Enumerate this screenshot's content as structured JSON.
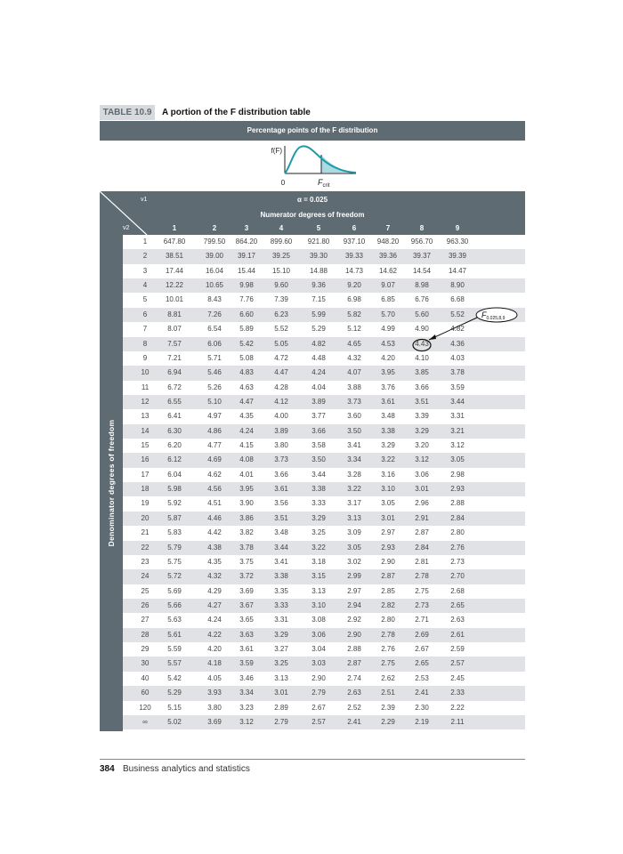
{
  "table": {
    "label": "TABLE 10.9",
    "title": "A portion of the F distribution table",
    "banner": "Percentage points of the F distribution",
    "graph": {
      "y_label": "f(F)",
      "origin_label": "0",
      "crit_label": "F",
      "crit_sub": "crit",
      "curve_color": "#1f9aa8",
      "tail_color": "#a9dbe3"
    },
    "nu1": "ν1",
    "nu2": "ν2",
    "alpha": "α = 0.025",
    "numerator_label": "Numerator degrees of freedom",
    "denominator_label": "Denominator degrees of freedom",
    "columns": [
      "1",
      "2",
      "3",
      "4",
      "5",
      "6",
      "7",
      "8",
      "9"
    ],
    "rows": [
      {
        "df": "1",
        "v": [
          "647.80",
          "799.50",
          "864.20",
          "899.60",
          "921.80",
          "937.10",
          "948.20",
          "956.70",
          "963.30"
        ]
      },
      {
        "df": "2",
        "v": [
          "38.51",
          "39.00",
          "39.17",
          "39.25",
          "39.30",
          "39.33",
          "39.36",
          "39.37",
          "39.39"
        ]
      },
      {
        "df": "3",
        "v": [
          "17.44",
          "16.04",
          "15.44",
          "15.10",
          "14.88",
          "14.73",
          "14.62",
          "14.54",
          "14.47"
        ]
      },
      {
        "df": "4",
        "v": [
          "12.22",
          "10.65",
          "9.98",
          "9.60",
          "9.36",
          "9.20",
          "9.07",
          "8.98",
          "8.90"
        ]
      },
      {
        "df": "5",
        "v": [
          "10.01",
          "8.43",
          "7.76",
          "7.39",
          "7.15",
          "6.98",
          "6.85",
          "6.76",
          "6.68"
        ]
      },
      {
        "df": "6",
        "v": [
          "8.81",
          "7.26",
          "6.60",
          "6.23",
          "5.99",
          "5.82",
          "5.70",
          "5.60",
          "5.52"
        ]
      },
      {
        "df": "7",
        "v": [
          "8.07",
          "6.54",
          "5.89",
          "5.52",
          "5.29",
          "5.12",
          "4.99",
          "4.90",
          "4.82"
        ]
      },
      {
        "df": "8",
        "v": [
          "7.57",
          "6.06",
          "5.42",
          "5.05",
          "4.82",
          "4.65",
          "4.53",
          "4.43",
          "4.36"
        ]
      },
      {
        "df": "9",
        "v": [
          "7.21",
          "5.71",
          "5.08",
          "4.72",
          "4.48",
          "4.32",
          "4.20",
          "4.10",
          "4.03"
        ]
      },
      {
        "df": "10",
        "v": [
          "6.94",
          "5.46",
          "4.83",
          "4.47",
          "4.24",
          "4.07",
          "3.95",
          "3.85",
          "3.78"
        ]
      },
      {
        "df": "11",
        "v": [
          "6.72",
          "5.26",
          "4.63",
          "4.28",
          "4.04",
          "3.88",
          "3.76",
          "3.66",
          "3.59"
        ]
      },
      {
        "df": "12",
        "v": [
          "6.55",
          "5.10",
          "4.47",
          "4.12",
          "3.89",
          "3.73",
          "3.61",
          "3.51",
          "3.44"
        ]
      },
      {
        "df": "13",
        "v": [
          "6.41",
          "4.97",
          "4.35",
          "4.00",
          "3.77",
          "3.60",
          "3.48",
          "3.39",
          "3.31"
        ]
      },
      {
        "df": "14",
        "v": [
          "6.30",
          "4.86",
          "4.24",
          "3.89",
          "3.66",
          "3.50",
          "3.38",
          "3.29",
          "3.21"
        ]
      },
      {
        "df": "15",
        "v": [
          "6.20",
          "4.77",
          "4.15",
          "3.80",
          "3.58",
          "3.41",
          "3.29",
          "3.20",
          "3.12"
        ]
      },
      {
        "df": "16",
        "v": [
          "6.12",
          "4.69",
          "4.08",
          "3.73",
          "3.50",
          "3.34",
          "3.22",
          "3.12",
          "3.05"
        ]
      },
      {
        "df": "17",
        "v": [
          "6.04",
          "4.62",
          "4.01",
          "3.66",
          "3.44",
          "3.28",
          "3.16",
          "3.06",
          "2.98"
        ]
      },
      {
        "df": "18",
        "v": [
          "5.98",
          "4.56",
          "3.95",
          "3.61",
          "3.38",
          "3.22",
          "3.10",
          "3.01",
          "2.93"
        ]
      },
      {
        "df": "19",
        "v": [
          "5.92",
          "4.51",
          "3.90",
          "3.56",
          "3.33",
          "3.17",
          "3.05",
          "2.96",
          "2.88"
        ]
      },
      {
        "df": "20",
        "v": [
          "5.87",
          "4.46",
          "3.86",
          "3.51",
          "3.29",
          "3.13",
          "3.01",
          "2.91",
          "2.84"
        ]
      },
      {
        "df": "21",
        "v": [
          "5.83",
          "4.42",
          "3.82",
          "3.48",
          "3.25",
          "3.09",
          "2.97",
          "2.87",
          "2.80"
        ]
      },
      {
        "df": "22",
        "v": [
          "5.79",
          "4.38",
          "3.78",
          "3.44",
          "3.22",
          "3.05",
          "2.93",
          "2.84",
          "2.76"
        ]
      },
      {
        "df": "23",
        "v": [
          "5.75",
          "4.35",
          "3.75",
          "3.41",
          "3.18",
          "3.02",
          "2.90",
          "2.81",
          "2.73"
        ]
      },
      {
        "df": "24",
        "v": [
          "5.72",
          "4.32",
          "3.72",
          "3.38",
          "3.15",
          "2.99",
          "2.87",
          "2.78",
          "2.70"
        ]
      },
      {
        "df": "25",
        "v": [
          "5.69",
          "4.29",
          "3.69",
          "3.35",
          "3.13",
          "2.97",
          "2.85",
          "2.75",
          "2.68"
        ]
      },
      {
        "df": "26",
        "v": [
          "5.66",
          "4.27",
          "3.67",
          "3.33",
          "3.10",
          "2.94",
          "2.82",
          "2.73",
          "2.65"
        ]
      },
      {
        "df": "27",
        "v": [
          "5.63",
          "4.24",
          "3.65",
          "3.31",
          "3.08",
          "2.92",
          "2.80",
          "2.71",
          "2.63"
        ]
      },
      {
        "df": "28",
        "v": [
          "5.61",
          "4.22",
          "3.63",
          "3.29",
          "3.06",
          "2.90",
          "2.78",
          "2.69",
          "2.61"
        ]
      },
      {
        "df": "29",
        "v": [
          "5.59",
          "4.20",
          "3.61",
          "3.27",
          "3.04",
          "2.88",
          "2.76",
          "2.67",
          "2.59"
        ]
      },
      {
        "df": "30",
        "v": [
          "5.57",
          "4.18",
          "3.59",
          "3.25",
          "3.03",
          "2.87",
          "2.75",
          "2.65",
          "2.57"
        ]
      },
      {
        "df": "40",
        "v": [
          "5.42",
          "4.05",
          "3.46",
          "3.13",
          "2.90",
          "2.74",
          "2.62",
          "2.53",
          "2.45"
        ]
      },
      {
        "df": "60",
        "v": [
          "5.29",
          "3.93",
          "3.34",
          "3.01",
          "2.79",
          "2.63",
          "2.51",
          "2.41",
          "2.33"
        ]
      },
      {
        "df": "120",
        "v": [
          "5.15",
          "3.80",
          "3.23",
          "2.89",
          "2.67",
          "2.52",
          "2.39",
          "2.30",
          "2.22"
        ]
      },
      {
        "df": "∞",
        "v": [
          "5.02",
          "3.69",
          "3.12",
          "2.79",
          "2.57",
          "2.41",
          "2.29",
          "2.19",
          "2.11"
        ]
      }
    ],
    "annotation": {
      "text": "F",
      "sub": "0.025,8,9",
      "target_row": "8",
      "target_col": "8"
    }
  },
  "footer": {
    "page_number": "384",
    "book_title": "Business analytics and statistics"
  },
  "colors": {
    "header": "#5f6b73",
    "stripe": "#e1e2e5"
  }
}
